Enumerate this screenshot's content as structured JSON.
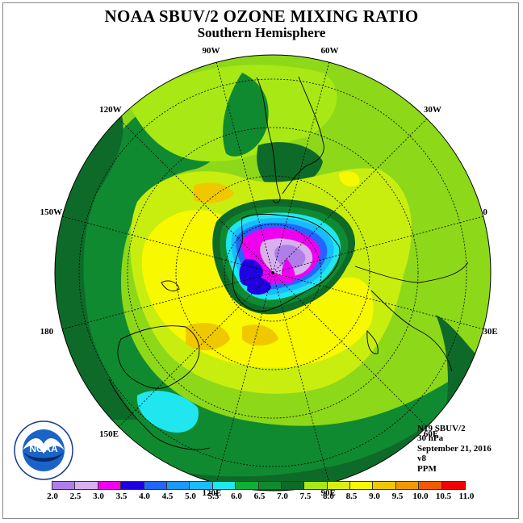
{
  "header": {
    "title": "NOAA SBUV/2 OZONE MIXING RATIO",
    "subtitle": "Southern Hemisphere"
  },
  "longitudes": [
    {
      "label": "90W",
      "angle": 0
    },
    {
      "label": "60W",
      "angle": 30
    },
    {
      "label": "30W",
      "angle": 60
    },
    {
      "label": "0",
      "angle": 90
    },
    {
      "label": "30E",
      "angle": 120
    },
    {
      "label": "60E",
      "angle": 150
    },
    {
      "label": "90E",
      "angle": 180
    },
    {
      "label": "120E",
      "angle": 210
    },
    {
      "label": "150E",
      "angle": 240
    },
    {
      "label": "180",
      "angle": 270
    },
    {
      "label": "150W",
      "angle": 300
    },
    {
      "label": "120W",
      "angle": 330
    }
  ],
  "info": {
    "instrument": "N19 SBUV/2",
    "level": "30 hPa",
    "date": "September 21, 2016",
    "version": "v8",
    "units": "PPM"
  },
  "colorbar": {
    "ticks": [
      "2.0",
      "2.5",
      "3.0",
      "3.5",
      "4.0",
      "4.5",
      "5.0",
      "5.5",
      "6.0",
      "6.5",
      "7.0",
      "7.5",
      "8.0",
      "8.5",
      "9.0",
      "9.5",
      "10.0",
      "10.5",
      "11.0"
    ],
    "colors": [
      "#b07ee8",
      "#d8b0ee",
      "#f000f0",
      "#2000e0",
      "#2266ff",
      "#1c98ff",
      "#18bcff",
      "#20e6f0",
      "#10b038",
      "#108a30",
      "#0e6a28",
      "#a8e814",
      "#d8f010",
      "#f8f800",
      "#f0c800",
      "#f09a00",
      "#f05a00",
      "#f00000",
      "#8a4a2a"
    ]
  },
  "logo": {
    "text": "NOAA",
    "ring_text": "NATIONAL OCEANIC AND ATMOSPHERIC ADMINISTRATION",
    "ring_text_bottom": "U.S. DEPARTMENT OF COMMERCE"
  },
  "map_colors": {
    "ocean_outer": "#8ed81a",
    "dark_green": "#0e6a28",
    "mid_green": "#108a30",
    "yellow_green": "#c8ee10",
    "yellow": "#f8f800",
    "orange": "#f0c800",
    "cyan": "#20e6f0"
  }
}
